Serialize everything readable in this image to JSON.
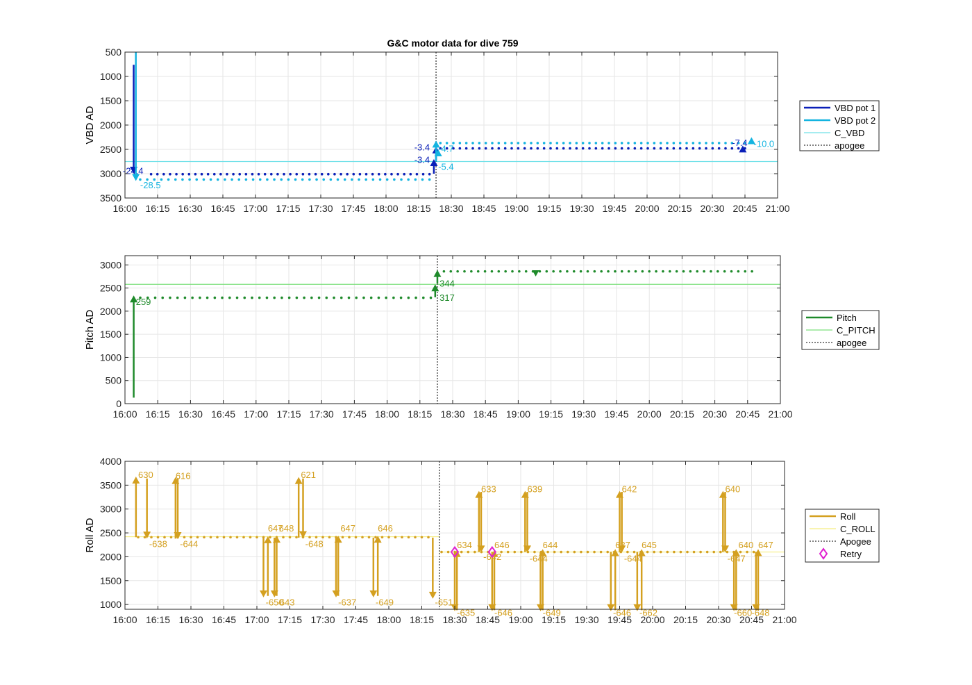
{
  "figure": {
    "title": "G&C motor data for dive 759"
  },
  "chart_data": [
    {
      "type": "line",
      "ylabel": "VBD AD",
      "yreverse": true,
      "ylim": [
        500,
        3500
      ],
      "yticks": [
        500,
        1000,
        1500,
        2000,
        2500,
        3000,
        3500
      ],
      "xlim": [
        "16:00",
        "21:00"
      ],
      "xticks": [
        "16:00",
        "16:15",
        "16:30",
        "16:45",
        "17:00",
        "17:15",
        "17:30",
        "17:45",
        "18:00",
        "18:15",
        "18:30",
        "18:45",
        "19:00",
        "19:15",
        "19:30",
        "19:45",
        "20:00",
        "20:15",
        "20:30",
        "20:45",
        "21:00"
      ],
      "grid": true,
      "apogee": "18:23",
      "legend": {
        "placement": "outside-right",
        "entries": [
          {
            "label": "VBD pot 1",
            "color": "#0a1fb8",
            "style": "thick"
          },
          {
            "label": "VBD pot 2",
            "color": "#14b4e0",
            "style": "thick"
          },
          {
            "label": "C_VBD",
            "color": "#6fe0e8",
            "style": "thin"
          },
          {
            "label": "apogee",
            "color": "#555555",
            "style": "dotted"
          }
        ]
      },
      "reference_lines": [
        {
          "name": "C_VBD",
          "color": "#6fe0e8",
          "segments": [
            {
              "from": "16:00",
              "to": "21:00",
              "y": 2750
            }
          ]
        }
      ],
      "series": [
        {
          "name": "VBD pot 1",
          "color": "#0a1fb8",
          "dots": [
            {
              "from": "16:12",
              "to": "18:20",
              "y": 3010,
              "n": 45
            },
            {
              "from": "18:25",
              "to": "20:45",
              "y": 2480,
              "n": 48
            }
          ]
        },
        {
          "name": "VBD pot 2",
          "color": "#14b4e0",
          "dots": [
            {
              "from": "16:07",
              "to": "18:20",
              "y": 3120,
              "n": 42
            },
            {
              "from": "18:25",
              "to": "20:45",
              "y": 2370,
              "n": 48
            }
          ]
        }
      ],
      "events": [
        {
          "t": "16:04",
          "y0": 760,
          "y1": 3000,
          "color": "#0a1fb8",
          "label": "-24.4",
          "lx": "15:59",
          "ly": 3010
        },
        {
          "t": "16:05",
          "y0": 500,
          "y1": 3150,
          "color": "#14b4e0",
          "label": "-28.5",
          "lx": "16:07",
          "ly": 3300
        },
        {
          "t": "18:22",
          "y0": 3000,
          "y1": 2700,
          "color": "#0a1fb8",
          "label": "-3.4",
          "lx": "18:13",
          "ly": 2780
        },
        {
          "t": "18:23",
          "y0": 2720,
          "y1": 2440,
          "color": "#0a1fb8",
          "label": "-3.4",
          "lx": "18:13",
          "ly": 2520
        },
        {
          "t": "18:23",
          "y0": 2750,
          "y1": 2320,
          "color": "#14b4e0",
          "label": "-5.4",
          "lx": "18:24",
          "ly": 2920
        },
        {
          "t": "18:24",
          "y0": 2600,
          "y1": 2500,
          "color": "#14b4e0",
          "label": "-4.7",
          "lx": "18:24",
          "ly": 2550
        },
        {
          "t": "20:44",
          "y0": 2480,
          "y1": 2420,
          "color": "#0a1fb8",
          "label": "-7.4",
          "lx": "20:39",
          "ly": 2430
        },
        {
          "t": "20:48",
          "y0": 2390,
          "y1": 2250,
          "color": "#14b4e0",
          "label": "-10.0",
          "lx": "20:49",
          "ly": 2450
        }
      ],
      "markers": []
    },
    {
      "type": "line",
      "ylabel": "Pitch AD",
      "yreverse": false,
      "ylim": [
        0,
        3200
      ],
      "yticks": [
        0,
        500,
        1000,
        1500,
        2000,
        2500,
        3000
      ],
      "xlim": [
        "16:00",
        "21:00"
      ],
      "xticks": [
        "16:00",
        "16:15",
        "16:30",
        "16:45",
        "17:00",
        "17:15",
        "17:30",
        "17:45",
        "18:00",
        "18:15",
        "18:30",
        "18:45",
        "19:00",
        "19:15",
        "19:30",
        "19:45",
        "20:00",
        "20:15",
        "20:30",
        "20:45",
        "21:00"
      ],
      "grid": true,
      "apogee": "18:23",
      "legend": {
        "placement": "outside-right",
        "entries": [
          {
            "label": "Pitch",
            "color": "#1e8a2a",
            "style": "thick"
          },
          {
            "label": "C_PITCH",
            "color": "#7ee07e",
            "style": "thin"
          },
          {
            "label": "apogee",
            "color": "#555555",
            "style": "dotted"
          }
        ]
      },
      "reference_lines": [
        {
          "name": "C_PITCH",
          "color": "#7ee07e",
          "segments": [
            {
              "from": "16:00",
              "to": "21:00",
              "y": 2580
            }
          ]
        }
      ],
      "series": [
        {
          "name": "Pitch",
          "color": "#1e8a2a",
          "dots": [
            {
              "from": "16:07",
              "to": "18:20",
              "y": 2290,
              "n": 40
            },
            {
              "from": "18:26",
              "to": "20:47",
              "y": 2860,
              "n": 46
            }
          ]
        }
      ],
      "events": [
        {
          "t": "16:04",
          "y0": 130,
          "y1": 2340,
          "color": "#1e8a2a",
          "label": "259",
          "lx": "16:05",
          "ly": 2130
        },
        {
          "t": "18:22",
          "y0": 2300,
          "y1": 2580,
          "color": "#1e8a2a",
          "label": "317",
          "lx": "18:24",
          "ly": 2220
        },
        {
          "t": "18:23",
          "y0": 2600,
          "y1": 2890,
          "color": "#1e8a2a",
          "label": "344",
          "lx": "18:24",
          "ly": 2530
        }
      ],
      "markers": [
        {
          "t": "19:08",
          "y": 2810,
          "color": "#1e8a2a",
          "shape": "triangle-down"
        }
      ]
    },
    {
      "type": "line",
      "ylabel": "Roll AD",
      "yreverse": false,
      "ylim": [
        900,
        4000
      ],
      "yticks": [
        1000,
        1500,
        2000,
        2500,
        3000,
        3500,
        4000
      ],
      "xlim": [
        "16:00",
        "21:00"
      ],
      "xticks": [
        "16:00",
        "16:15",
        "16:30",
        "16:45",
        "17:00",
        "17:15",
        "17:30",
        "17:45",
        "18:00",
        "18:15",
        "18:30",
        "18:45",
        "19:00",
        "19:15",
        "19:30",
        "19:45",
        "20:00",
        "20:15",
        "20:30",
        "20:45",
        "21:00"
      ],
      "grid": true,
      "apogee": "18:23",
      "legend": {
        "placement": "outside-right",
        "entries": [
          {
            "label": "Roll",
            "color": "#d4a020",
            "style": "thick"
          },
          {
            "label": "C_ROLL",
            "color": "#f5ee80",
            "style": "thin"
          },
          {
            "label": "Apogee",
            "color": "#555555",
            "style": "dotted"
          },
          {
            "label": "Retry",
            "color": "#e020d0",
            "style": "diamond"
          }
        ]
      },
      "reference_lines": [
        {
          "name": "C_ROLL",
          "color": "#f5ee80",
          "segments": [
            {
              "from": "16:00",
              "to": "18:23",
              "y": 2420
            },
            {
              "from": "18:23",
              "to": "21:00",
              "y": 2100
            }
          ]
        }
      ],
      "series": [
        {
          "name": "Roll",
          "color": "#d4a020",
          "dots": [
            {
              "from": "16:06",
              "to": "18:18",
              "y": 2410,
              "n": 45
            },
            {
              "from": "18:24",
              "to": "20:46",
              "y": 2100,
              "n": 48
            }
          ]
        }
      ],
      "events": [
        {
          "t": "16:05",
          "y0": 2410,
          "y1": 3680,
          "color": "#d4a020",
          "label": "630",
          "lx": "16:06",
          "ly": 3650
        },
        {
          "t": "16:10",
          "y0": 3640,
          "y1": 2380,
          "color": "#d4a020",
          "label": "-638",
          "lx": "16:11",
          "ly": 2200
        },
        {
          "t": "16:23",
          "y0": 2380,
          "y1": 3670,
          "color": "#d4a020",
          "label": "616",
          "lx": "16:23",
          "ly": 3630
        },
        {
          "t": "16:24",
          "y0": 3640,
          "y1": 2370,
          "color": "#d4a020",
          "label": "-644",
          "lx": "16:25",
          "ly": 2200
        },
        {
          "t": "17:03",
          "y0": 2420,
          "y1": 1150,
          "color": "#d4a020",
          "label": "-650",
          "lx": "17:04",
          "ly": 980
        },
        {
          "t": "17:05",
          "y0": 1180,
          "y1": 2430,
          "color": "#d4a020",
          "label": "647",
          "lx": "17:05",
          "ly": 2530
        },
        {
          "t": "17:08",
          "y0": 2400,
          "y1": 1150,
          "color": "#d4a020",
          "label": "-643",
          "lx": "17:09",
          "ly": 980
        },
        {
          "t": "17:09",
          "y0": 1180,
          "y1": 2440,
          "color": "#d4a020",
          "label": "648",
          "lx": "17:10",
          "ly": 2530
        },
        {
          "t": "17:19",
          "y0": 2400,
          "y1": 3670,
          "color": "#d4a020",
          "label": "621",
          "lx": "17:20",
          "ly": 3650
        },
        {
          "t": "17:21",
          "y0": 3640,
          "y1": 2390,
          "color": "#d4a020",
          "label": "-648",
          "lx": "17:22",
          "ly": 2200
        },
        {
          "t": "17:36",
          "y0": 2390,
          "y1": 1150,
          "color": "#d4a020",
          "label": "-637",
          "lx": "17:37",
          "ly": 980
        },
        {
          "t": "17:37",
          "y0": 1180,
          "y1": 2440,
          "color": "#d4a020",
          "label": "647",
          "lx": "17:38",
          "ly": 2530
        },
        {
          "t": "17:53",
          "y0": 2400,
          "y1": 1150,
          "color": "#d4a020",
          "label": "-649",
          "lx": "17:54",
          "ly": 980
        },
        {
          "t": "17:55",
          "y0": 1180,
          "y1": 2440,
          "color": "#d4a020",
          "label": "646",
          "lx": "17:55",
          "ly": 2530
        },
        {
          "t": "18:20",
          "y0": 2400,
          "y1": 1120,
          "color": "#d4a020",
          "label": "-651",
          "lx": "18:21",
          "ly": 980
        },
        {
          "t": "18:30",
          "y0": 2100,
          "y1": 860,
          "color": "#d4a020",
          "label": "-635",
          "lx": "18:31",
          "ly": 760
        },
        {
          "t": "18:31",
          "y0": 880,
          "y1": 2140,
          "color": "#d4a020",
          "label": "634",
          "lx": "18:31",
          "ly": 2180
        },
        {
          "t": "18:41",
          "y0": 2100,
          "y1": 3380,
          "color": "#d4a020",
          "label": "633",
          "lx": "18:42",
          "ly": 3350
        },
        {
          "t": "18:42",
          "y0": 3360,
          "y1": 2090,
          "color": "#d4a020",
          "label": "-642",
          "lx": "18:43",
          "ly": 1930
        },
        {
          "t": "18:47",
          "y0": 2100,
          "y1": 860,
          "color": "#d4a020",
          "label": "-646",
          "lx": "18:48",
          "ly": 760
        },
        {
          "t": "18:48",
          "y0": 880,
          "y1": 2140,
          "color": "#d4a020",
          "label": "646",
          "lx": "18:48",
          "ly": 2180
        },
        {
          "t": "19:02",
          "y0": 2100,
          "y1": 3380,
          "color": "#d4a020",
          "label": "639",
          "lx": "19:03",
          "ly": 3350
        },
        {
          "t": "19:03",
          "y0": 3360,
          "y1": 2090,
          "color": "#d4a020",
          "label": "-644",
          "lx": "19:04",
          "ly": 1900
        },
        {
          "t": "19:09",
          "y0": 2100,
          "y1": 860,
          "color": "#d4a020",
          "label": "-649",
          "lx": "19:10",
          "ly": 760
        },
        {
          "t": "19:10",
          "y0": 880,
          "y1": 2160,
          "color": "#d4a020",
          "label": "644",
          "lx": "19:10",
          "ly": 2180
        },
        {
          "t": "19:41",
          "y0": 2100,
          "y1": 860,
          "color": "#d4a020",
          "label": "-646",
          "lx": "19:42",
          "ly": 760
        },
        {
          "t": "19:43",
          "y0": 880,
          "y1": 2160,
          "color": "#d4a020",
          "label": "637",
          "lx": "19:43",
          "ly": 2180
        },
        {
          "t": "19:45",
          "y0": 2100,
          "y1": 3380,
          "color": "#d4a020",
          "label": "642",
          "lx": "19:46",
          "ly": 3350
        },
        {
          "t": "19:46",
          "y0": 3360,
          "y1": 2090,
          "color": "#d4a020",
          "label": "-644",
          "lx": "19:47",
          "ly": 1900
        },
        {
          "t": "19:53",
          "y0": 2100,
          "y1": 860,
          "color": "#d4a020",
          "label": "-662",
          "lx": "19:54",
          "ly": 760
        },
        {
          "t": "19:55",
          "y0": 880,
          "y1": 2160,
          "color": "#d4a020",
          "label": "645",
          "lx": "19:55",
          "ly": 2180
        },
        {
          "t": "20:32",
          "y0": 2100,
          "y1": 3380,
          "color": "#d4a020",
          "label": "640",
          "lx": "20:33",
          "ly": 3350
        },
        {
          "t": "20:33",
          "y0": 3360,
          "y1": 2090,
          "color": "#d4a020",
          "label": "-647",
          "lx": "20:34",
          "ly": 1900
        },
        {
          "t": "20:37",
          "y0": 2100,
          "y1": 860,
          "color": "#d4a020",
          "label": "-660",
          "lx": "20:37",
          "ly": 760
        },
        {
          "t": "20:38",
          "y0": 880,
          "y1": 2160,
          "color": "#d4a020",
          "label": "640",
          "lx": "20:39",
          "ly": 2180
        },
        {
          "t": "20:47",
          "y0": 2100,
          "y1": 860,
          "color": "#d4a020",
          "label": "-648",
          "lx": "20:45",
          "ly": 760
        },
        {
          "t": "20:48",
          "y0": 880,
          "y1": 2160,
          "color": "#d4a020",
          "label": "647",
          "lx": "20:48",
          "ly": 2180
        }
      ],
      "markers": [
        {
          "t": "18:30",
          "y": 2100,
          "color": "#e020d0",
          "shape": "diamond"
        },
        {
          "t": "18:47",
          "y": 2100,
          "color": "#e020d0",
          "shape": "diamond"
        }
      ]
    }
  ]
}
